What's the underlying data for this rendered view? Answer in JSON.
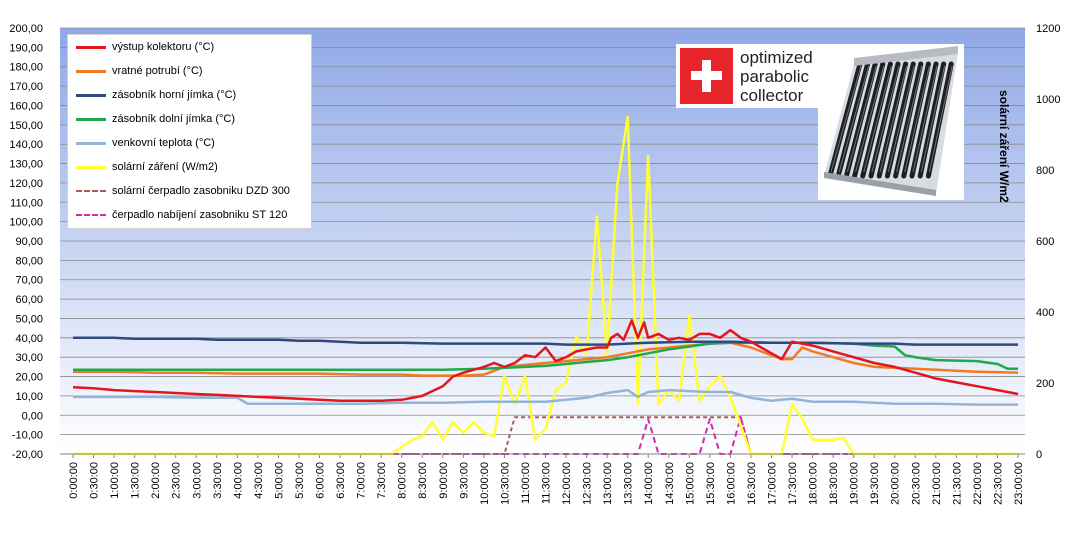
{
  "chart_data": {
    "type": "line",
    "title": "",
    "xlabel": "",
    "ylabel_left": "",
    "ylabel_right": "solární záření W/m2",
    "ylim_left": [
      -20,
      200
    ],
    "ylim_right": [
      0,
      1200
    ],
    "y_ticks_left": [
      "200,00",
      "190,00",
      "180,00",
      "170,00",
      "160,00",
      "150,00",
      "140,00",
      "130,00",
      "120,00",
      "110,00",
      "100,00",
      "90,00",
      "80,00",
      "70,00",
      "60,00",
      "50,00",
      "40,00",
      "30,00",
      "20,00",
      "10,00",
      "0,00",
      "-10,00",
      "-20,00"
    ],
    "y_ticks_right": [
      "1200",
      "1000",
      "800",
      "600",
      "400",
      "200",
      "0"
    ],
    "x_ticks": [
      "0:00:00",
      "0:30:00",
      "1:00:00",
      "1:30:00",
      "2:00:00",
      "2:30:00",
      "3:00:00",
      "3:30:00",
      "4:00:00",
      "4:30:00",
      "5:00:00",
      "5:30:00",
      "6:00:00",
      "6:30:00",
      "7:00:00",
      "7:30:00",
      "8:00:00",
      "8:30:00",
      "9:00:00",
      "9:30:00",
      "10:00:00",
      "10:30:00",
      "11:00:00",
      "11:30:00",
      "12:00:00",
      "12:30:00",
      "13:00:00",
      "13:30:00",
      "14:00:00",
      "14:30:00",
      "15:00:00",
      "15:30:00",
      "16:00:00",
      "16:30:00",
      "17:00:00",
      "17:30:00",
      "18:00:00",
      "18:30:00",
      "19:00:00",
      "19:30:00",
      "20:00:00",
      "20:30:00",
      "21:00:00",
      "21:30:00",
      "22:00:00",
      "22:30:00",
      "23:00:00"
    ],
    "grid": true,
    "legend_position": "top-left",
    "background_gradient": [
      "#8fa8e6",
      "#ffffff"
    ],
    "series": [
      {
        "name": "výstup kolektoru (°C)",
        "axis": "left",
        "color": "#e3161c",
        "dash": "solid",
        "points": [
          [
            0,
            14.5
          ],
          [
            0.5,
            14
          ],
          [
            1,
            13
          ],
          [
            1.5,
            12.5
          ],
          [
            2,
            12
          ],
          [
            2.5,
            11.5
          ],
          [
            3,
            11
          ],
          [
            3.5,
            10.5
          ],
          [
            4,
            10
          ],
          [
            4.5,
            9.5
          ],
          [
            5,
            9
          ],
          [
            5.5,
            8.5
          ],
          [
            6,
            8
          ],
          [
            6.5,
            7.5
          ],
          [
            7,
            7.5
          ],
          [
            7.5,
            7.5
          ],
          [
            8,
            8
          ],
          [
            8.5,
            10
          ],
          [
            9,
            15
          ],
          [
            9.25,
            20
          ],
          [
            9.5,
            22
          ],
          [
            10,
            25
          ],
          [
            10.25,
            27
          ],
          [
            10.5,
            25
          ],
          [
            10.75,
            27
          ],
          [
            11,
            31
          ],
          [
            11.25,
            30
          ],
          [
            11.5,
            35
          ],
          [
            11.75,
            28
          ],
          [
            12,
            30
          ],
          [
            12.25,
            33
          ],
          [
            12.5,
            34
          ],
          [
            12.75,
            35
          ],
          [
            13,
            35
          ],
          [
            13.1,
            40
          ],
          [
            13.25,
            42
          ],
          [
            13.4,
            39
          ],
          [
            13.6,
            49
          ],
          [
            13.75,
            40
          ],
          [
            13.9,
            48
          ],
          [
            14,
            40
          ],
          [
            14.25,
            42
          ],
          [
            14.5,
            39
          ],
          [
            14.75,
            40
          ],
          [
            15,
            39
          ],
          [
            15.25,
            42
          ],
          [
            15.5,
            42
          ],
          [
            15.75,
            40
          ],
          [
            16,
            44
          ],
          [
            16.25,
            40
          ],
          [
            16.5,
            38
          ],
          [
            16.75,
            35
          ],
          [
            17,
            32
          ],
          [
            17.25,
            29
          ],
          [
            17.5,
            38
          ],
          [
            17.75,
            37
          ],
          [
            18,
            36
          ],
          [
            18.5,
            33
          ],
          [
            19,
            30
          ],
          [
            19.5,
            27
          ],
          [
            20,
            25
          ],
          [
            20.5,
            22
          ],
          [
            21,
            19
          ],
          [
            21.5,
            17
          ],
          [
            22,
            15
          ],
          [
            22.5,
            13
          ],
          [
            23,
            11
          ]
        ]
      },
      {
        "name": "vratné potrubí (°C)",
        "axis": "left",
        "color": "#f07b23",
        "dash": "solid",
        "points": [
          [
            0,
            22.5
          ],
          [
            1,
            22.5
          ],
          [
            2,
            22
          ],
          [
            3,
            22
          ],
          [
            4,
            21.5
          ],
          [
            5,
            21.5
          ],
          [
            6,
            21.5
          ],
          [
            7,
            21
          ],
          [
            8,
            21
          ],
          [
            8.5,
            20.5
          ],
          [
            9,
            20.5
          ],
          [
            9.5,
            20.5
          ],
          [
            10,
            21
          ],
          [
            10.5,
            25
          ],
          [
            11,
            26
          ],
          [
            11.5,
            27
          ],
          [
            12,
            28
          ],
          [
            12.5,
            29
          ],
          [
            13,
            30
          ],
          [
            13.5,
            32
          ],
          [
            14,
            34
          ],
          [
            14.5,
            35
          ],
          [
            15,
            36
          ],
          [
            15.5,
            37
          ],
          [
            16,
            37.5
          ],
          [
            16.5,
            35
          ],
          [
            17,
            31
          ],
          [
            17.25,
            29
          ],
          [
            17.5,
            29
          ],
          [
            17.75,
            35
          ],
          [
            18,
            33
          ],
          [
            18.5,
            30
          ],
          [
            19,
            27
          ],
          [
            19.5,
            25
          ],
          [
            20,
            24.5
          ],
          [
            21,
            23.5
          ],
          [
            22,
            22.5
          ],
          [
            23,
            22
          ]
        ]
      },
      {
        "name": "zásobník horní jímka (°C)",
        "axis": "left",
        "color": "#2e4a7e",
        "dash": "solid",
        "points": [
          [
            0,
            40
          ],
          [
            1,
            40
          ],
          [
            1.5,
            39.5
          ],
          [
            2,
            39.5
          ],
          [
            3,
            39.5
          ],
          [
            3.5,
            39
          ],
          [
            4,
            39
          ],
          [
            5,
            39
          ],
          [
            5.5,
            38.5
          ],
          [
            6,
            38.5
          ],
          [
            7,
            37.5
          ],
          [
            8,
            37.5
          ],
          [
            9,
            37
          ],
          [
            10,
            37
          ],
          [
            11,
            37
          ],
          [
            11.5,
            37
          ],
          [
            12,
            36.5
          ],
          [
            13,
            36.5
          ],
          [
            13.5,
            37
          ],
          [
            14,
            37.5
          ],
          [
            15,
            38
          ],
          [
            16,
            38
          ],
          [
            17,
            37.5
          ],
          [
            18,
            37.5
          ],
          [
            19,
            37
          ],
          [
            20,
            37
          ],
          [
            20.5,
            36.5
          ],
          [
            21,
            36.5
          ],
          [
            22,
            36.5
          ],
          [
            23,
            36.5
          ]
        ]
      },
      {
        "name": "zásobník dolní jímka  (°C)",
        "axis": "left",
        "color": "#20a84a",
        "dash": "solid",
        "points": [
          [
            0,
            23.5
          ],
          [
            1,
            23.5
          ],
          [
            2,
            23.5
          ],
          [
            3,
            23.5
          ],
          [
            4,
            23.5
          ],
          [
            5,
            23.5
          ],
          [
            6,
            23.5
          ],
          [
            7,
            23.5
          ],
          [
            8,
            23.5
          ],
          [
            9,
            23.5
          ],
          [
            10,
            24
          ],
          [
            10.5,
            24.5
          ],
          [
            11,
            25
          ],
          [
            11.5,
            25.5
          ],
          [
            12,
            26.5
          ],
          [
            12.5,
            27.5
          ],
          [
            13,
            28.5
          ],
          [
            13.5,
            30
          ],
          [
            14,
            32
          ],
          [
            14.5,
            34
          ],
          [
            15,
            35.5
          ],
          [
            15.5,
            37
          ],
          [
            16,
            37.5
          ],
          [
            16.5,
            37.5
          ],
          [
            17,
            37.5
          ],
          [
            18,
            37.5
          ],
          [
            19,
            37
          ],
          [
            19.5,
            36
          ],
          [
            20,
            35.5
          ],
          [
            20.25,
            31
          ],
          [
            20.5,
            30
          ],
          [
            21,
            28.5
          ],
          [
            22,
            28
          ],
          [
            22.5,
            26.5
          ],
          [
            22.75,
            24
          ],
          [
            23,
            24
          ]
        ]
      },
      {
        "name": "venkovní teplota (°C)",
        "axis": "left",
        "color": "#94b3d9",
        "dash": "solid",
        "points": [
          [
            0,
            9.5
          ],
          [
            1,
            9.5
          ],
          [
            2,
            9.5
          ],
          [
            3,
            9
          ],
          [
            4,
            9
          ],
          [
            4.25,
            6
          ],
          [
            4.5,
            6
          ],
          [
            5,
            6
          ],
          [
            6,
            6
          ],
          [
            7,
            6
          ],
          [
            8,
            6.5
          ],
          [
            9,
            6.5
          ],
          [
            10,
            7
          ],
          [
            11,
            7
          ],
          [
            11.5,
            7
          ],
          [
            12,
            8
          ],
          [
            12.5,
            9
          ],
          [
            13,
            11.5
          ],
          [
            13.5,
            13
          ],
          [
            13.75,
            9.5
          ],
          [
            14,
            12
          ],
          [
            14.5,
            13
          ],
          [
            15,
            12.5
          ],
          [
            15.5,
            12
          ],
          [
            16,
            12
          ],
          [
            16.5,
            9
          ],
          [
            17,
            7.5
          ],
          [
            17.5,
            8.5
          ],
          [
            18,
            7
          ],
          [
            19,
            7
          ],
          [
            20,
            6
          ],
          [
            21,
            6
          ],
          [
            22,
            5.5
          ],
          [
            23,
            5.5
          ]
        ]
      },
      {
        "name": "solární záření (W/m2)",
        "axis": "right",
        "color": "#ffff33",
        "dash": "solid",
        "points": [
          [
            0,
            0
          ],
          [
            7.75,
            0
          ],
          [
            8,
            20
          ],
          [
            8.25,
            40
          ],
          [
            8.5,
            50
          ],
          [
            8.75,
            90
          ],
          [
            9,
            40
          ],
          [
            9.25,
            90
          ],
          [
            9.5,
            60
          ],
          [
            9.75,
            90
          ],
          [
            10,
            60
          ],
          [
            10.25,
            50
          ],
          [
            10.5,
            220
          ],
          [
            10.75,
            140
          ],
          [
            11,
            220
          ],
          [
            11.25,
            40
          ],
          [
            11.5,
            70
          ],
          [
            11.75,
            180
          ],
          [
            12,
            200
          ],
          [
            12.25,
            330
          ],
          [
            12.5,
            280
          ],
          [
            12.75,
            670
          ],
          [
            13,
            280
          ],
          [
            13.25,
            760
          ],
          [
            13.5,
            950
          ],
          [
            13.75,
            140
          ],
          [
            14,
            840
          ],
          [
            14.25,
            140
          ],
          [
            14.5,
            180
          ],
          [
            14.75,
            150
          ],
          [
            15,
            390
          ],
          [
            15.25,
            150
          ],
          [
            15.5,
            190
          ],
          [
            15.75,
            220
          ],
          [
            16,
            160
          ],
          [
            16.25,
            80
          ],
          [
            16.5,
            0
          ],
          [
            17,
            0
          ],
          [
            17.25,
            0
          ],
          [
            17.5,
            140
          ],
          [
            17.75,
            100
          ],
          [
            18,
            40
          ],
          [
            18.5,
            40
          ],
          [
            18.75,
            45
          ],
          [
            19,
            0
          ],
          [
            23,
            0
          ]
        ]
      },
      {
        "name": "solární čerpadlo zasobniku  DZD 300",
        "axis": "left",
        "color": "#a8605a",
        "dash": "dashed",
        "points": [
          [
            0,
            -20
          ],
          [
            10.5,
            -20
          ],
          [
            10.75,
            -1
          ],
          [
            11,
            -1
          ],
          [
            16.25,
            -1
          ],
          [
            16.5,
            -20
          ],
          [
            23,
            -20
          ]
        ]
      },
      {
        "name": "čerpadlo nabíjení  zasobniku ST 120",
        "axis": "left",
        "color": "#d42ab0",
        "dash": "dashed",
        "points": [
          [
            0,
            -20
          ],
          [
            13.75,
            -20
          ],
          [
            14,
            -2
          ],
          [
            14.25,
            -20
          ],
          [
            15.25,
            -20
          ],
          [
            15.5,
            -2
          ],
          [
            15.75,
            -20
          ],
          [
            16,
            -20
          ],
          [
            16.25,
            -1
          ],
          [
            16.5,
            -20
          ],
          [
            23,
            -20
          ]
        ]
      }
    ]
  },
  "logo": {
    "line1": "optimized",
    "line2": "parabolic",
    "line3": "collector"
  }
}
